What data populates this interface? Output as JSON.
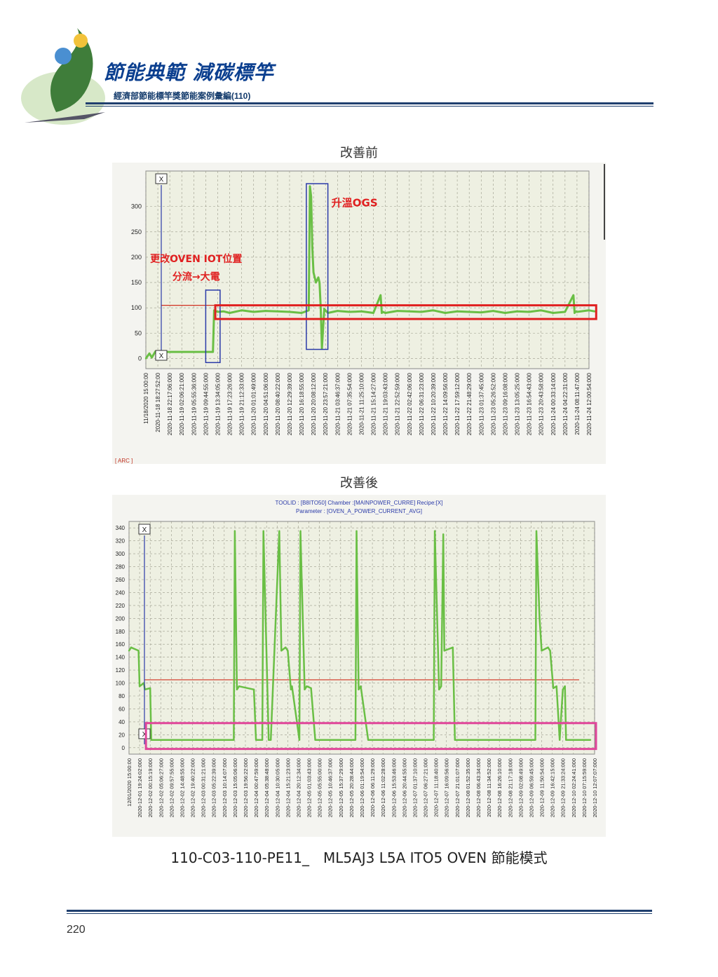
{
  "header": {
    "title": "節能典範 減碳標竿",
    "subtitle": "經濟部節能標竿獎節能案例彙編(110)"
  },
  "footer": {
    "page_number": "220",
    "caption": "110-C03-110-PE11_　ML5AJ3 L5A ITO5 OVEN  節能模式"
  },
  "colors": {
    "series": "#6abf45",
    "threshold": "#d03020",
    "cursor": "#2a3aa8",
    "highlight_red": "#e02020",
    "highlight_blue": "#2a3aa8",
    "highlight_pink": "#e0479a",
    "plot_bg": "#eef0e2",
    "brand": "#1f3f6e"
  },
  "chart_data": [
    {
      "type": "line",
      "caption": "改善前",
      "title": "",
      "xlabel": "",
      "ylabel": "",
      "ylim": [
        -20,
        370
      ],
      "yticks": [
        0,
        50,
        100,
        150,
        200,
        250,
        300
      ],
      "grid": true,
      "x_ticks": [
        "11/18/2020 15:00:00",
        "2020-11-18 18:27:52:00",
        "2020-11-18 22:17:06:000",
        "2020-11-19 02:06:21:000",
        "2020-11-19 05:55:36:000",
        "2020-11-19 09:44:55:000",
        "2020-11-19 13:34:05:000",
        "2020-11-19 17:23:26:000",
        "2020-11-19 21:12:33:000",
        "2020-11-20 01:01:49:000",
        "2020-11-20 04:51:06:000",
        "2020-11-20 08:40:22:000",
        "2020-11-20 12:29:39:000",
        "2020-11-20 16:18:55:000",
        "2020-11-20 20:08:12:000",
        "2020-11-20 23:57:21:000",
        "2020-11-21 03:46:37:000",
        "2020-11-21 07:35:54:000",
        "2020-11-21 11:25:10:000",
        "2020-11-21 15:14:27:000",
        "2020-11-21 19:03:43:000",
        "2020-11-21 22:52:59:000",
        "2020-11-22 02:42:06:000",
        "2020-11-22 06:31:23:000",
        "2020-11-22 10:20:39:000",
        "2020-11-22 14:09:56:000",
        "2020-11-22 17:59:12:000",
        "2020-11-22 21:48:29:000",
        "2020-11-23 01:37:45:000",
        "2020-11-23 05:26:52:000",
        "2020-11-23 09:16:08:000",
        "2020-11-23 13:05:25:000",
        "2020-11-23 16:54:43:000",
        "2020-11-23 20:43:58:000",
        "2020-11-24 00:33:14:000",
        "2020-11-24 04:22:31:000",
        "2020-11-24 08:11:47:000",
        "2020-11-24 12:00:54:000"
      ],
      "threshold": 105,
      "series": [
        {
          "x": [
            0,
            0.3,
            0.5,
            0.8,
            1.0,
            1.3,
            5.0,
            5.6,
            5.7,
            6.0,
            6.5,
            7,
            8,
            9,
            10,
            11,
            12,
            13,
            13.6,
            13.7,
            13.8,
            13.9,
            14.0,
            14.2,
            14.4,
            14.5,
            14.6,
            14.7,
            14.8,
            14.9,
            15.0,
            15.2,
            16,
            17,
            18,
            19,
            19.6,
            19.7,
            19.8,
            20,
            21,
            22,
            23,
            24,
            25,
            26,
            27,
            28,
            29,
            30,
            31,
            32,
            33,
            34,
            35,
            35.7,
            35.8,
            35.9,
            36,
            37,
            37.5
          ],
          "y": [
            0,
            10,
            2,
            14,
            12,
            13,
            13,
            13,
            95,
            92,
            93,
            90,
            95,
            92,
            94,
            93,
            92,
            90,
            95,
            340,
            320,
            220,
            170,
            150,
            160,
            150,
            100,
            20,
            60,
            98,
            95,
            90,
            94,
            92,
            93,
            90,
            125,
            90,
            92,
            90,
            94,
            93,
            92,
            95,
            90,
            93,
            92,
            91,
            94,
            90,
            93,
            92,
            95,
            90,
            92,
            125,
            90,
            93,
            92,
            95,
            93
          ]
        }
      ],
      "annotations": [
        "更改OVEN IOT位置",
        "分流→大電",
        "升溫OGS"
      ],
      "cursor_labels": [
        "X",
        "X"
      ],
      "bottom_label": "[ ARC ]"
    },
    {
      "type": "line",
      "caption": "改善後",
      "title": "TOOLID : [B8ITO50]   Chamber :[MAINPOWER_CURRE]  Recipe:[X]",
      "subtitle": "Parameter : [OVEN_A_POWER_CURRENT_AVG]",
      "xlabel": "",
      "ylabel": "",
      "ylim": [
        -10,
        350
      ],
      "yticks": [
        0,
        20,
        40,
        60,
        80,
        100,
        120,
        140,
        160,
        180,
        200,
        220,
        240,
        260,
        280,
        300,
        320,
        340
      ],
      "grid": true,
      "x_ticks": [
        "12/01/2020 15:00:00",
        "2020-12-01 19:24:02:000",
        "2020-12-02 00:15:19:000",
        "2020-12-02 05:06:27:000",
        "2020-12-02 09:57:55:000",
        "2020-12-02 14:48:55:000",
        "2020-12-02 19:40:22:000",
        "2020-12-03 00:31:21:000",
        "2020-12-03 05:22:39:000",
        "2020-12-03 10:14:07:000",
        "2020-12-03 15:05:06:000",
        "2020-12-03 19:56:22:000",
        "2020-12-04 00:47:59:000",
        "2020-12-04 05:38:48:000",
        "2020-12-04 10:30:05:000",
        "2020-12-04 15:21:23:000",
        "2020-12-04 20:12:34:000",
        "2020-12-05 01:03:43:000",
        "2020-12-05 05:55:00:000",
        "2020-12-05 10:46:37:000",
        "2020-12-05 15:37:29:000",
        "2020-12-05 20:28:44:000",
        "2020-12-06 01:19:54:000",
        "2020-12-06 06:11:29:000",
        "2020-12-06 11:02:28:000",
        "2020-12-06 15:53:46:000",
        "2020-12-06 20:44:55:000",
        "2020-12-07 01:37:10:000",
        "2020-12-07 06:27:21:000",
        "2020-12-07 11:18:40:000",
        "2020-12-07 16:09:56:000",
        "2020-12-07 21:01:07:000",
        "2020-12-08 01:52:35:000",
        "2020-12-08 06:43:34:000",
        "2020-12-08 11:34:52:000",
        "2020-12-08 16:26:10:000",
        "2020-12-08 21:17:18:000",
        "2020-12-09 02:08:49:000",
        "2020-12-09 06:59:45:000",
        "2020-12-09 11:50:54:000",
        "2020-12-09 16:42:15:000",
        "2020-12-09 21:33:24:000",
        "2020-12-10 02:24:41:000",
        "2020-12-10 07:15:59:000",
        "2020-12-10 12:07:07:000"
      ],
      "threshold": 105,
      "series": [
        {
          "x": [
            0,
            0.2,
            0.9,
            1.0,
            1.4,
            1.5,
            2.0,
            2.1,
            2.3,
            9.9,
            10.0,
            10.2,
            10.4,
            11.8,
            12.0,
            12.5,
            12.6,
            12.7,
            13.2,
            13.4,
            14.2,
            14.4,
            14.8,
            15.0,
            15.3,
            15.4,
            16.1,
            16.2,
            16.6,
            16.8,
            17.2,
            17.6,
            17.7,
            18.4,
            21.4,
            21.5,
            21.7,
            21.9,
            22.6,
            22.8,
            28.8,
            28.9,
            29.3,
            29.5,
            29.7,
            29.8,
            30.6,
            30.8,
            38.4,
            38.5,
            38.8,
            39.0,
            39.6,
            39.8,
            40.1,
            40.4,
            40.7,
            41.0,
            41.2,
            41.3,
            42.0,
            42.2,
            43.6
          ],
          "y": [
            150,
            155,
            150,
            95,
            100,
            90,
            92,
            12,
            12,
            12,
            335,
            90,
            95,
            90,
            12,
            12,
            12,
            335,
            12,
            12,
            335,
            150,
            155,
            150,
            90,
            95,
            12,
            335,
            90,
            95,
            92,
            12,
            12,
            12,
            12,
            335,
            90,
            95,
            12,
            12,
            12,
            335,
            90,
            95,
            330,
            150,
            155,
            12,
            12,
            335,
            200,
            150,
            155,
            150,
            92,
            95,
            12,
            90,
            95,
            12,
            12,
            12,
            12
          ]
        }
      ],
      "cursor_labels": [
        "X",
        "X"
      ]
    }
  ]
}
